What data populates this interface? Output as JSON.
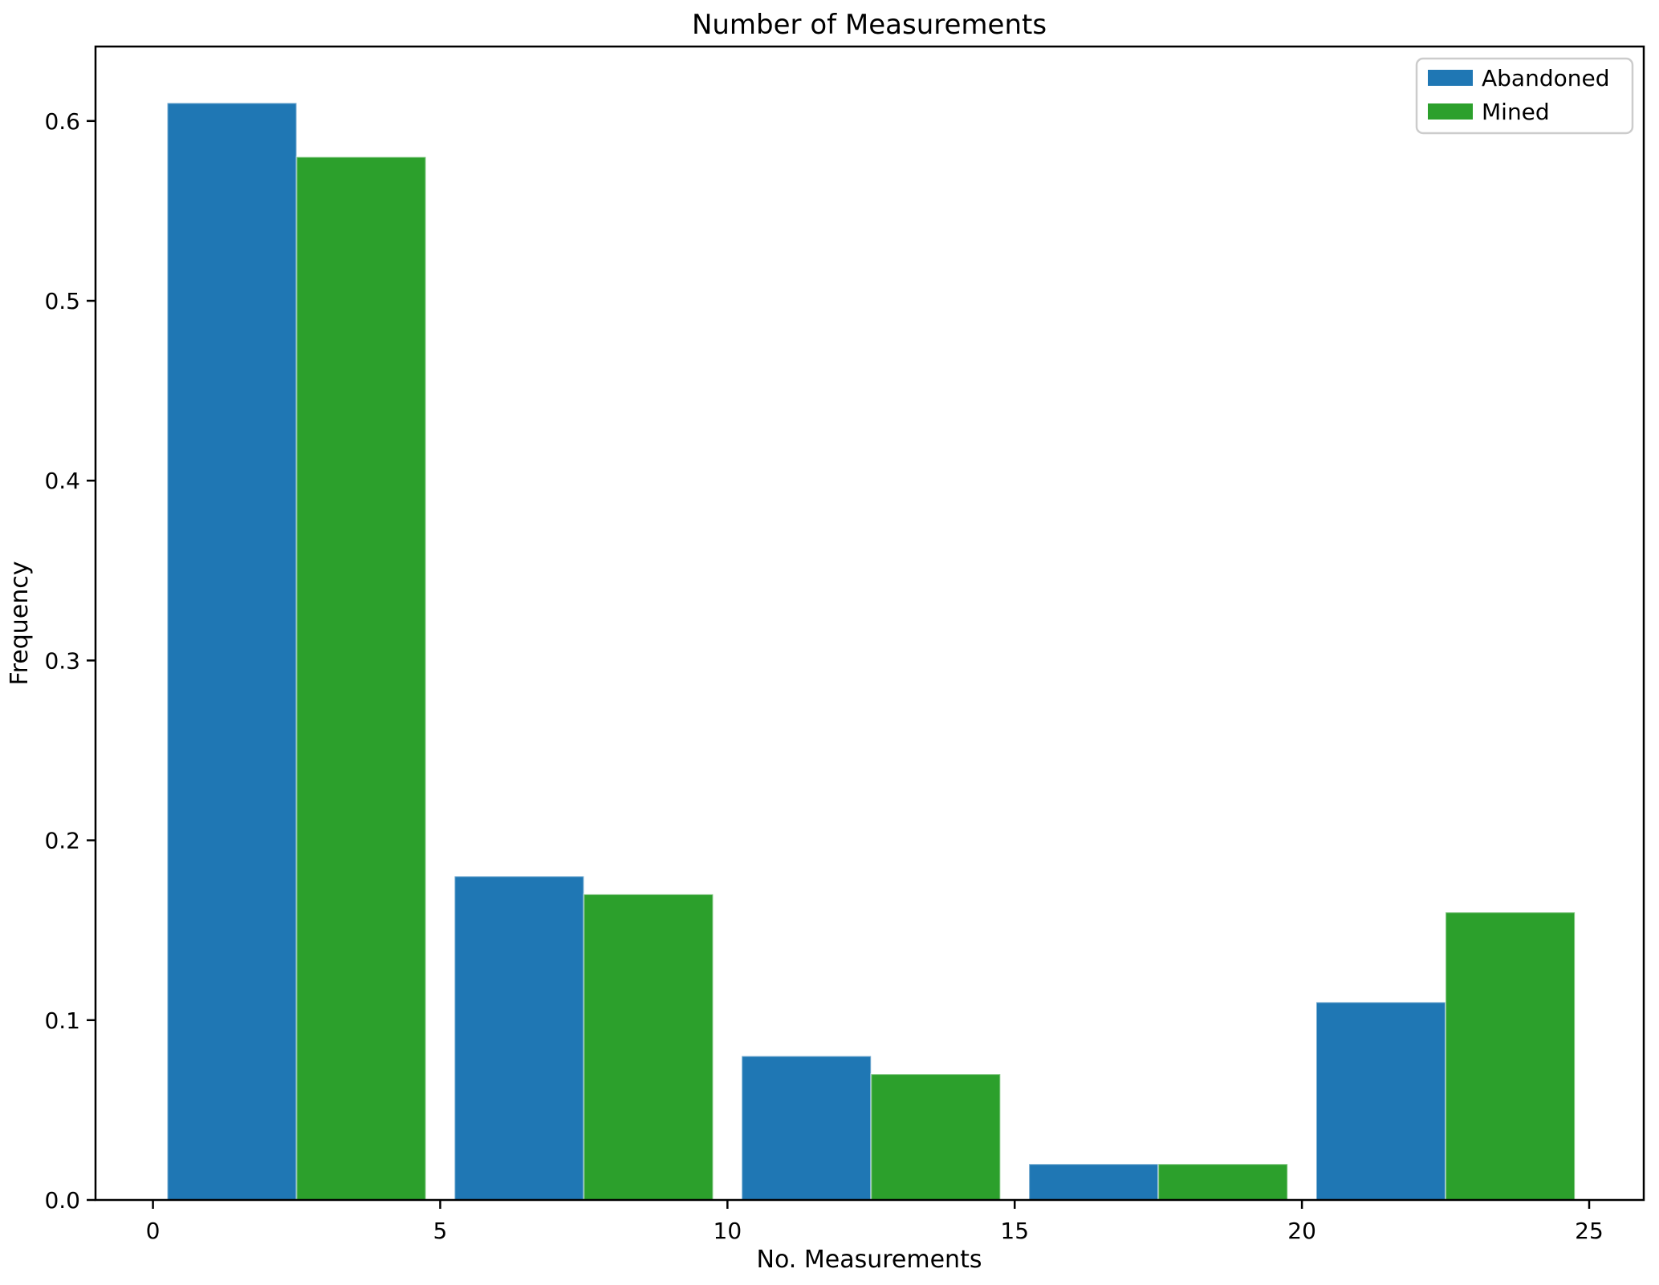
{
  "chart_data": {
    "type": "bar",
    "title": "Number of Measurements",
    "xlabel": "No. Measurements",
    "ylabel": "Frequency",
    "bins": [
      0,
      5,
      10,
      15,
      20,
      25
    ],
    "categories": [
      "0-5",
      "5-10",
      "10-15",
      "15-20",
      "20-25"
    ],
    "series": [
      {
        "name": "Abandoned",
        "color": "#1f77b4",
        "values": [
          0.61,
          0.18,
          0.08,
          0.02,
          0.11
        ]
      },
      {
        "name": "Mined",
        "color": "#2ca02c",
        "values": [
          0.58,
          0.17,
          0.07,
          0.02,
          0.16
        ]
      }
    ],
    "xticks": [
      "0",
      "5",
      "10",
      "15",
      "20",
      "25"
    ],
    "xtick_values": [
      0,
      5,
      10,
      15,
      20,
      25
    ],
    "yticks": [
      "0.0",
      "0.1",
      "0.2",
      "0.3",
      "0.4",
      "0.5",
      "0.6"
    ],
    "ytick_values": [
      0,
      0.1,
      0.2,
      0.3,
      0.4,
      0.5,
      0.6
    ],
    "xlim": [
      -1.0,
      25.95
    ],
    "ylim": [
      0,
      0.6414
    ],
    "grid": false,
    "legend": {
      "position": "upper right",
      "entries": [
        "Abandoned",
        "Mined"
      ]
    },
    "axis_color": "#000000"
  }
}
